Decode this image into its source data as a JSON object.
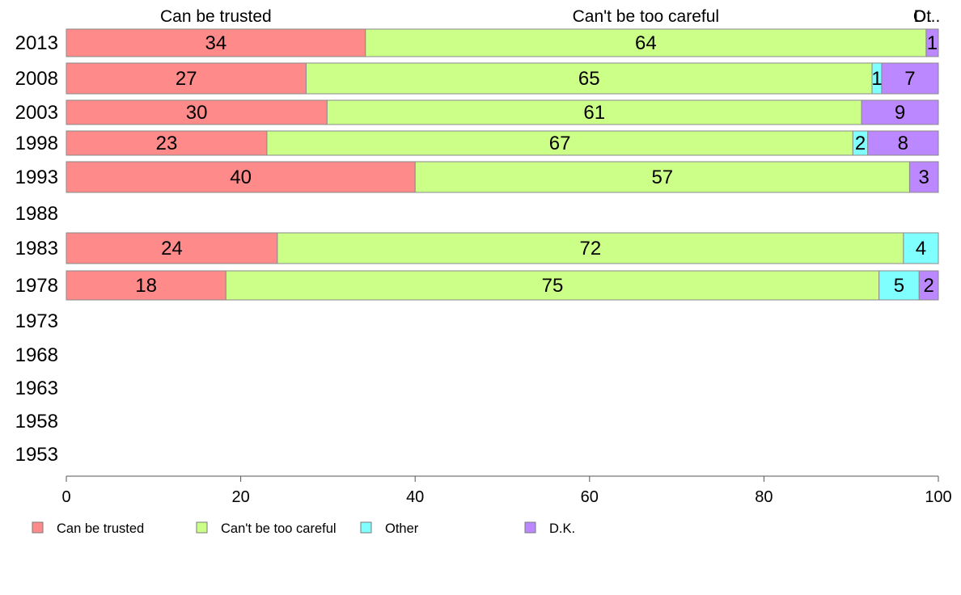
{
  "chart_data": {
    "type": "bar",
    "orientation": "horizontal",
    "stacked": true,
    "categories": [
      "2013",
      "2008",
      "2003",
      "1998",
      "1993",
      "1988",
      "1983",
      "1978",
      "1973",
      "1968",
      "1963",
      "1958",
      "1953"
    ],
    "series": [
      {
        "name": "Can be trusted",
        "color": "#ff8a8a",
        "values": [
          34.3,
          27.5,
          29.9,
          23.0,
          40.0,
          null,
          24.2,
          18.3,
          null,
          null,
          null,
          null,
          null
        ],
        "labels": [
          "34",
          "27",
          "30",
          "23",
          "40",
          null,
          "24",
          "18",
          null,
          null,
          null,
          null,
          null
        ]
      },
      {
        "name": "Can't be too careful",
        "color": "#ccff88",
        "values": [
          64.3,
          64.9,
          61.3,
          67.2,
          56.7,
          null,
          71.8,
          74.9,
          null,
          null,
          null,
          null,
          null
        ],
        "labels": [
          "64",
          "65",
          "61",
          "67",
          "57",
          null,
          "72",
          "75",
          null,
          null,
          null,
          null,
          null
        ]
      },
      {
        "name": "Other",
        "color": "#80ffff",
        "values": [
          0.0,
          1.1,
          0.0,
          1.7,
          0.0,
          null,
          4.0,
          4.6,
          null,
          null,
          null,
          null,
          null
        ],
        "labels": [
          null,
          "1",
          null,
          "2",
          null,
          null,
          "4",
          "5",
          null,
          null,
          null,
          null,
          null
        ]
      },
      {
        "name": "D.K.",
        "color": "#bb88ff",
        "values": [
          1.4,
          6.5,
          8.8,
          8.1,
          3.3,
          null,
          0.0,
          2.2,
          null,
          null,
          null,
          null,
          null
        ],
        "labels": [
          "1",
          "7",
          "9",
          "8",
          "3",
          null,
          null,
          "2",
          null,
          null,
          null,
          null,
          null
        ]
      }
    ],
    "header_labels": [
      "Can be trusted",
      "Can't be too careful",
      "Ot",
      "D..."
    ],
    "xlim": [
      0,
      100
    ],
    "xticks": [
      0,
      20,
      40,
      60,
      80,
      100
    ],
    "xlabel": "",
    "ylabel": "",
    "title": "",
    "grid": false,
    "legend": "bottom-left"
  }
}
